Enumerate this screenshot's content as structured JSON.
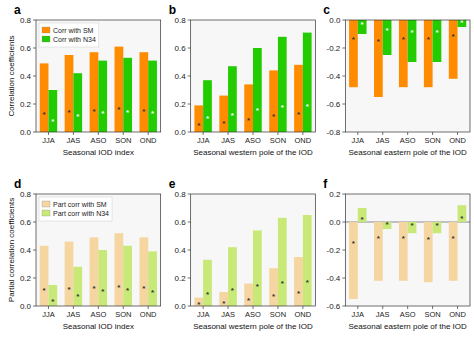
{
  "chart_data": [
    {
      "type": "bar",
      "title": "a",
      "xlabel": "Seasonal IOD index",
      "ylabel": "Correlation coefficients",
      "categories": [
        "JJA",
        "JAS",
        "ASO",
        "SON",
        "OND"
      ],
      "series": [
        {
          "name": "Corr with SM",
          "color": "#FF8C00",
          "values": [
            0.49,
            0.55,
            0.57,
            0.61,
            0.57
          ],
          "stars": [
            true,
            true,
            true,
            true,
            true
          ]
        },
        {
          "name": "Corr with N34",
          "color": "#22CC00",
          "values": [
            0.3,
            0.42,
            0.51,
            0.53,
            0.51
          ],
          "stars": [
            true,
            true,
            true,
            true,
            true
          ]
        }
      ],
      "annotation": "*",
      "ylim": [
        0,
        0.8
      ],
      "yticks": [
        {
          "value": 0,
          "label": "0.0"
        },
        0.2,
        0.4,
        0.6,
        0.8
      ],
      "legend": "upper left"
    },
    {
      "type": "bar",
      "title": "b",
      "xlabel": "Seasonal western pole of the IOD",
      "categories": [
        "JJA",
        "JAS",
        "ASO",
        "SON",
        "OND"
      ],
      "series": [
        {
          "color": "#FF8C00",
          "values": [
            0.19,
            0.26,
            0.34,
            0.44,
            0.48
          ],
          "stars": [
            true,
            true,
            true,
            true,
            true
          ]
        },
        {
          "color": "#22CC00",
          "values": [
            0.37,
            0.47,
            0.6,
            0.68,
            0.71
          ],
          "stars": [
            true,
            true,
            true,
            true,
            true
          ]
        }
      ],
      "annotation": "*",
      "ylim": [
        0,
        0.8
      ],
      "yticks": [
        {
          "value": 0,
          "label": "0.0"
        },
        0.2,
        0.4,
        0.6,
        0.8
      ]
    },
    {
      "type": "bar",
      "title": "c",
      "xlabel": "Seasonal eastern pole of the IOD",
      "categories": [
        "JJA",
        "JAS",
        "ASO",
        "SON",
        "OND"
      ],
      "series": [
        {
          "color": "#FF8C00",
          "values": [
            -0.48,
            -0.55,
            -0.48,
            -0.48,
            -0.42
          ],
          "stars": [
            true,
            true,
            true,
            true,
            true
          ]
        },
        {
          "color": "#22CC00",
          "values": [
            -0.1,
            -0.25,
            -0.3,
            -0.3,
            -0.05
          ],
          "stars": [
            true,
            true,
            true,
            true,
            true
          ]
        }
      ],
      "annotation": "*",
      "ylim": [
        -0.8,
        0
      ],
      "yticks": [
        -0.8,
        -0.6,
        -0.4,
        -0.2,
        {
          "value": 0,
          "label": "0.0"
        }
      ]
    },
    {
      "type": "bar",
      "title": "d",
      "xlabel": "Seasonal IOD index",
      "ylabel": "Partial correlation coefficients",
      "categories": [
        "JJA",
        "JAS",
        "ASO",
        "SON",
        "OND"
      ],
      "series": [
        {
          "name": "Part corr with SM",
          "color": "#F5D5A0",
          "values": [
            0.43,
            0.46,
            0.49,
            0.52,
            0.49
          ],
          "stars": [
            true,
            true,
            true,
            true,
            true
          ]
        },
        {
          "name": "Part corr with N34",
          "color": "#C8E878",
          "values": [
            0.15,
            0.28,
            0.4,
            0.43,
            0.39
          ],
          "stars": [
            true,
            true,
            true,
            true,
            true
          ]
        }
      ],
      "annotation": "*",
      "ylim": [
        0,
        0.8
      ],
      "yticks": [
        {
          "value": 0,
          "label": "0.0"
        },
        0.2,
        0.4,
        0.6,
        0.8
      ],
      "legend": "upper left"
    },
    {
      "type": "bar",
      "title": "e",
      "xlabel": "Seasonal western pole of the IOD",
      "categories": [
        "JJA",
        "JAS",
        "ASO",
        "SON",
        "OND"
      ],
      "series": [
        {
          "color": "#F5D5A0",
          "values": [
            0.06,
            0.1,
            0.16,
            0.27,
            0.35
          ],
          "stars": [
            true,
            true,
            true,
            true,
            true
          ]
        },
        {
          "color": "#C8E878",
          "values": [
            0.33,
            0.42,
            0.54,
            0.63,
            0.65
          ],
          "stars": [
            true,
            true,
            true,
            true,
            true
          ]
        }
      ],
      "annotation": "*",
      "ylim": [
        0,
        0.8
      ],
      "yticks": [
        {
          "value": 0,
          "label": "0.0"
        },
        0.2,
        0.4,
        0.6,
        0.8
      ]
    },
    {
      "type": "bar",
      "title": "f",
      "xlabel": "Seasonal eastern pole of the IOD",
      "categories": [
        "JJA",
        "JAS",
        "ASO",
        "SON",
        "OND"
      ],
      "series": [
        {
          "color": "#F5D5A0",
          "values": [
            -0.55,
            -0.42,
            -0.42,
            -0.43,
            -0.42
          ],
          "stars": [
            true,
            true,
            true,
            true,
            true
          ]
        },
        {
          "color": "#C8E878",
          "values": [
            0.1,
            -0.05,
            -0.08,
            -0.08,
            0.12
          ],
          "stars": [
            true,
            true,
            true,
            true,
            true
          ]
        }
      ],
      "annotation": "*",
      "ylim": [
        -0.6,
        0.2
      ],
      "yticks": [
        -0.6,
        -0.4,
        -0.2,
        {
          "value": 0,
          "label": "0.0"
        },
        0.2
      ]
    }
  ]
}
